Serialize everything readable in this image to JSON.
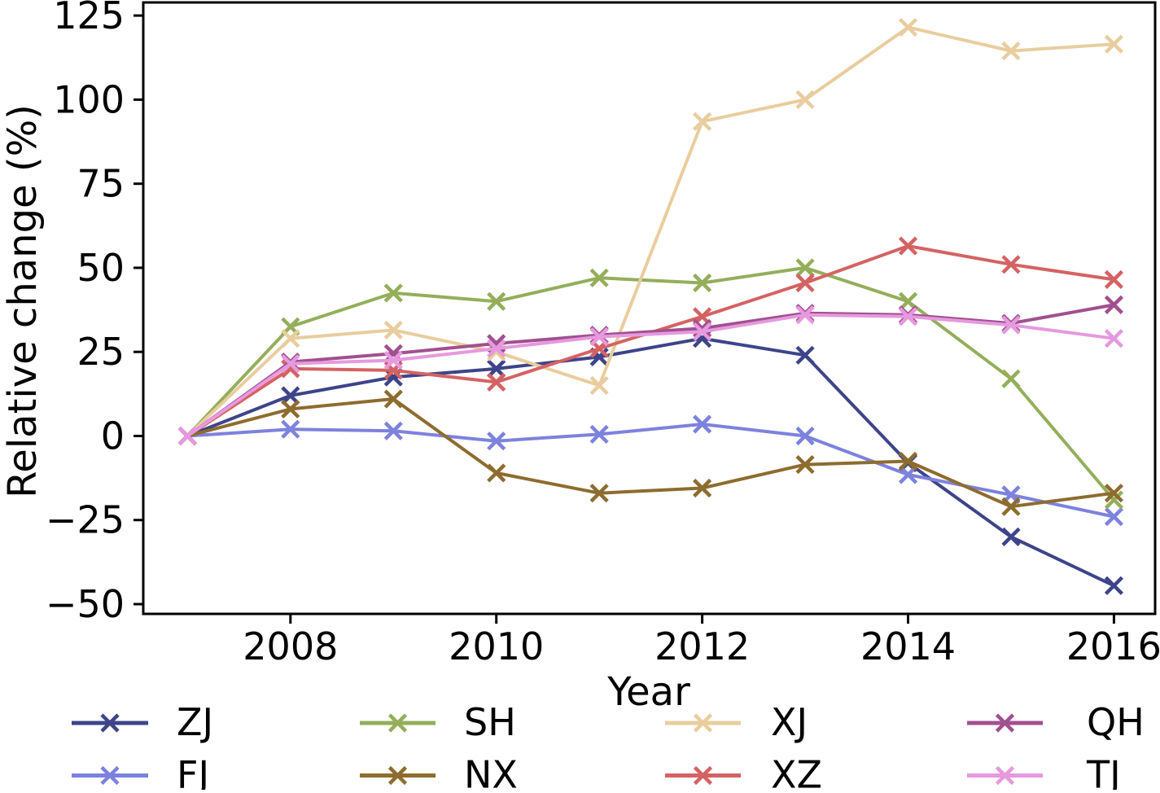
{
  "figure": {
    "background": "#ffffff",
    "spine_color": "#000000",
    "text_color": "#000000"
  },
  "chart_data": {
    "type": "line",
    "title": "",
    "xlabel": "Year",
    "ylabel": "Relative change (%)",
    "marker": "x",
    "grid": false,
    "x": [
      2007,
      2008,
      2009,
      2010,
      2011,
      2012,
      2013,
      2014,
      2015,
      2016
    ],
    "xlim": [
      2006.57,
      2016.4
    ],
    "ylim": [
      -52.9,
      128.9
    ],
    "xticks": [
      2008,
      2010,
      2012,
      2014,
      2016
    ],
    "xtick_labels": [
      "2008",
      "2010",
      "2012",
      "2014",
      "2016"
    ],
    "yticks": [
      125,
      100,
      75,
      50,
      25,
      0,
      -25,
      -50
    ],
    "ytick_labels": [
      "125",
      "100",
      "75",
      "50",
      "25",
      "0",
      "−25",
      "−50"
    ],
    "series": [
      {
        "name": "ZJ",
        "color": "#3d4489",
        "values": [
          0,
          12,
          17.5,
          20,
          23.5,
          29,
          24,
          -8,
          -30,
          -44.5
        ]
      },
      {
        "name": "FJ",
        "color": "#7d82dd",
        "values": [
          0,
          2,
          1.5,
          -1.5,
          0.5,
          3.5,
          0,
          -11.5,
          -17.5,
          -24
        ]
      },
      {
        "name": "SH",
        "color": "#94ae5a",
        "values": [
          0,
          32.5,
          42.5,
          40,
          47,
          45.5,
          50,
          40,
          17,
          -19
        ]
      },
      {
        "name": "NX",
        "color": "#8d6c2e",
        "values": [
          0,
          8,
          11,
          -11,
          -17,
          -15.5,
          -8.5,
          -7.5,
          -21,
          -17
        ]
      },
      {
        "name": "XJ",
        "color": "#e9cd9e",
        "values": [
          0,
          29,
          31.5,
          25,
          15,
          93.5,
          100,
          121.5,
          114.5,
          116.5
        ]
      },
      {
        "name": "XZ",
        "color": "#d56263",
        "values": [
          0,
          20,
          19.5,
          16,
          26,
          35.5,
          45.5,
          56.5,
          51,
          46.5
        ]
      },
      {
        "name": "QH",
        "color": "#a1508f",
        "values": [
          0,
          22,
          24.5,
          27.5,
          30,
          32,
          36.5,
          36,
          33.5,
          39
        ]
      },
      {
        "name": "TJ",
        "color": "#e699de",
        "values": [
          0,
          21.5,
          22.5,
          26,
          29.5,
          31,
          36,
          35.5,
          33,
          29
        ]
      }
    ],
    "legend_position": "below chart, 4 columns x 2 rows",
    "legend_columns": [
      [
        "ZJ",
        "FJ"
      ],
      [
        "SH",
        "NX"
      ],
      [
        "XJ",
        "XZ"
      ],
      [
        "QH",
        "TJ"
      ]
    ]
  }
}
